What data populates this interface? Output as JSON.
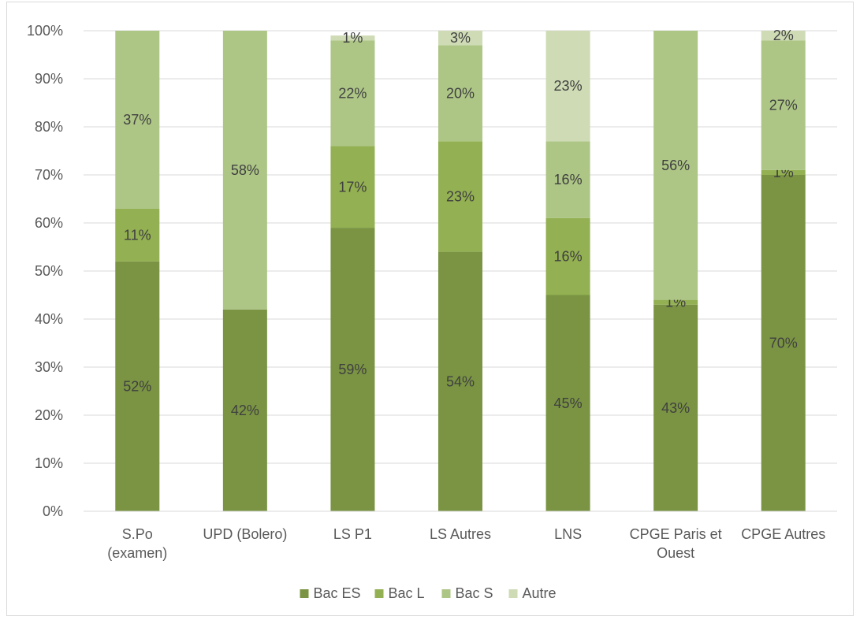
{
  "chart_data": {
    "type": "bar",
    "stacked": true,
    "percent_stacked": true,
    "title": "",
    "xlabel": "",
    "ylabel": "",
    "ylim": [
      0,
      100
    ],
    "y_ticks": [
      "0%",
      "10%",
      "20%",
      "30%",
      "40%",
      "50%",
      "60%",
      "70%",
      "80%",
      "90%",
      "100%"
    ],
    "grid": true,
    "legend_position": "bottom",
    "categories": [
      [
        "S.Po",
        "(examen)"
      ],
      [
        "UPD (Bolero)"
      ],
      [
        "LS P1"
      ],
      [
        "LS Autres"
      ],
      [
        "LNS"
      ],
      [
        "CPGE Paris et",
        "Ouest"
      ],
      [
        "CPGE Autres"
      ]
    ],
    "series": [
      {
        "name": "Bac ES",
        "color": "#7a9443",
        "values": [
          52,
          42,
          59,
          54,
          45,
          43,
          70
        ],
        "labels": [
          "52%",
          "42%",
          "59%",
          "54%",
          "45%",
          "43%",
          "70%"
        ]
      },
      {
        "name": "Bac L",
        "color": "#93b052",
        "values": [
          11,
          0,
          17,
          23,
          16,
          1,
          1
        ],
        "labels": [
          "11%",
          "",
          "17%",
          "23%",
          "16%",
          "1%",
          "1%"
        ]
      },
      {
        "name": "Bac S",
        "color": "#adc686",
        "values": [
          37,
          58,
          22,
          20,
          16,
          56,
          27
        ],
        "labels": [
          "37%",
          "58%",
          "22%",
          "20%",
          "16%",
          "56%",
          "27%"
        ]
      },
      {
        "name": "Autre",
        "color": "#cedbb5",
        "values": [
          0,
          0,
          1,
          3,
          23,
          0,
          2
        ],
        "labels": [
          "",
          "",
          "1%",
          "3%",
          "23%",
          "",
          "2%"
        ]
      }
    ]
  }
}
